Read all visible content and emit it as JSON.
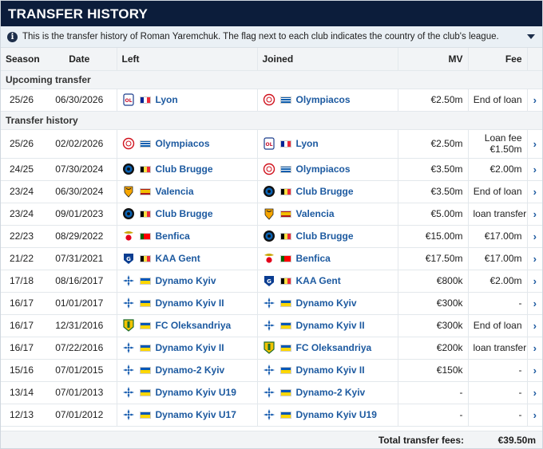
{
  "title": "TRANSFER HISTORY",
  "info_text": "This is the transfer history of Roman Yaremchuk. The flag next to each club indicates the country of the club's league.",
  "columns": {
    "season": "Season",
    "date": "Date",
    "left": "Left",
    "joined": "Joined",
    "mv": "MV",
    "fee": "Fee"
  },
  "sections": {
    "upcoming": "Upcoming transfer",
    "history": "Transfer history"
  },
  "upcoming": [
    {
      "season": "25/26",
      "date": "06/30/2026",
      "left": "Lyon",
      "left_crest": "lyon",
      "left_flag": "fr",
      "joined": "Olympiacos",
      "joined_crest": "olympiacos",
      "joined_flag": "gr",
      "mv": "€2.50m",
      "fee": "End of loan",
      "fee2": ""
    }
  ],
  "history": [
    {
      "season": "25/26",
      "date": "02/02/2026",
      "left": "Olympiacos",
      "left_crest": "olympiacos",
      "left_flag": "gr",
      "joined": "Lyon",
      "joined_crest": "lyon",
      "joined_flag": "fr",
      "mv": "€2.50m",
      "fee": "Loan fee",
      "fee2": "€1.50m"
    },
    {
      "season": "24/25",
      "date": "07/30/2024",
      "left": "Club Brugge",
      "left_crest": "brugge",
      "left_flag": "be",
      "joined": "Olympiacos",
      "joined_crest": "olympiacos",
      "joined_flag": "gr",
      "mv": "€3.50m",
      "fee": "€2.00m",
      "fee2": ""
    },
    {
      "season": "23/24",
      "date": "06/30/2024",
      "left": "Valencia",
      "left_crest": "valencia",
      "left_flag": "es",
      "joined": "Club Brugge",
      "joined_crest": "brugge",
      "joined_flag": "be",
      "mv": "€3.50m",
      "fee": "End of loan",
      "fee2": ""
    },
    {
      "season": "23/24",
      "date": "09/01/2023",
      "left": "Club Brugge",
      "left_crest": "brugge",
      "left_flag": "be",
      "joined": "Valencia",
      "joined_crest": "valencia",
      "joined_flag": "es",
      "mv": "€5.00m",
      "fee": "loan transfer",
      "fee2": ""
    },
    {
      "season": "22/23",
      "date": "08/29/2022",
      "left": "Benfica",
      "left_crest": "benfica",
      "left_flag": "pt",
      "joined": "Club Brugge",
      "joined_crest": "brugge",
      "joined_flag": "be",
      "mv": "€15.00m",
      "fee": "€17.00m",
      "fee2": ""
    },
    {
      "season": "21/22",
      "date": "07/31/2021",
      "left": "KAA Gent",
      "left_crest": "gent",
      "left_flag": "be",
      "joined": "Benfica",
      "joined_crest": "benfica",
      "joined_flag": "pt",
      "mv": "€17.50m",
      "fee": "€17.00m",
      "fee2": ""
    },
    {
      "season": "17/18",
      "date": "08/16/2017",
      "left": "Dynamo Kyiv",
      "left_crest": "dynamo",
      "left_flag": "ua",
      "joined": "KAA Gent",
      "joined_crest": "gent",
      "joined_flag": "be",
      "mv": "€800k",
      "fee": "€2.00m",
      "fee2": ""
    },
    {
      "season": "16/17",
      "date": "01/01/2017",
      "left": "Dynamo Kyiv II",
      "left_crest": "dynamo",
      "left_flag": "ua",
      "joined": "Dynamo Kyiv",
      "joined_crest": "dynamo",
      "joined_flag": "ua",
      "mv": "€300k",
      "fee": "-",
      "fee2": ""
    },
    {
      "season": "16/17",
      "date": "12/31/2016",
      "left": "FC Oleksandriya",
      "left_crest": "oleks",
      "left_flag": "ua",
      "joined": "Dynamo Kyiv II",
      "joined_crest": "dynamo",
      "joined_flag": "ua",
      "mv": "€300k",
      "fee": "End of loan",
      "fee2": ""
    },
    {
      "season": "16/17",
      "date": "07/22/2016",
      "left": "Dynamo Kyiv II",
      "left_crest": "dynamo",
      "left_flag": "ua",
      "joined": "FC Oleksandriya",
      "joined_crest": "oleks",
      "joined_flag": "ua",
      "mv": "€200k",
      "fee": "loan transfer",
      "fee2": ""
    },
    {
      "season": "15/16",
      "date": "07/01/2015",
      "left": "Dynamo-2 Kyiv",
      "left_crest": "dynamo",
      "left_flag": "ua",
      "joined": "Dynamo Kyiv II",
      "joined_crest": "dynamo",
      "joined_flag": "ua",
      "mv": "€150k",
      "fee": "-",
      "fee2": ""
    },
    {
      "season": "13/14",
      "date": "07/01/2013",
      "left": "Dynamo Kyiv U19",
      "left_crest": "dynamo",
      "left_flag": "ua",
      "joined": "Dynamo-2 Kyiv",
      "joined_crest": "dynamo",
      "joined_flag": "ua",
      "mv": "-",
      "fee": "-",
      "fee2": ""
    },
    {
      "season": "12/13",
      "date": "07/01/2012",
      "left": "Dynamo Kyiv U17",
      "left_crest": "dynamo",
      "left_flag": "ua",
      "joined": "Dynamo Kyiv U19",
      "joined_crest": "dynamo",
      "joined_flag": "ua",
      "mv": "-",
      "fee": "-",
      "fee2": ""
    }
  ],
  "total": {
    "label": "Total transfer fees:",
    "value": "€39.50m"
  },
  "colors": {
    "header_bg": "#0c1d3b",
    "link": "#1d5aa0",
    "row_alt": "#f2f4f6"
  },
  "icons": {
    "info": "info-icon",
    "expand": "chevron-down-icon",
    "row_link": "chevron-right-icon"
  }
}
